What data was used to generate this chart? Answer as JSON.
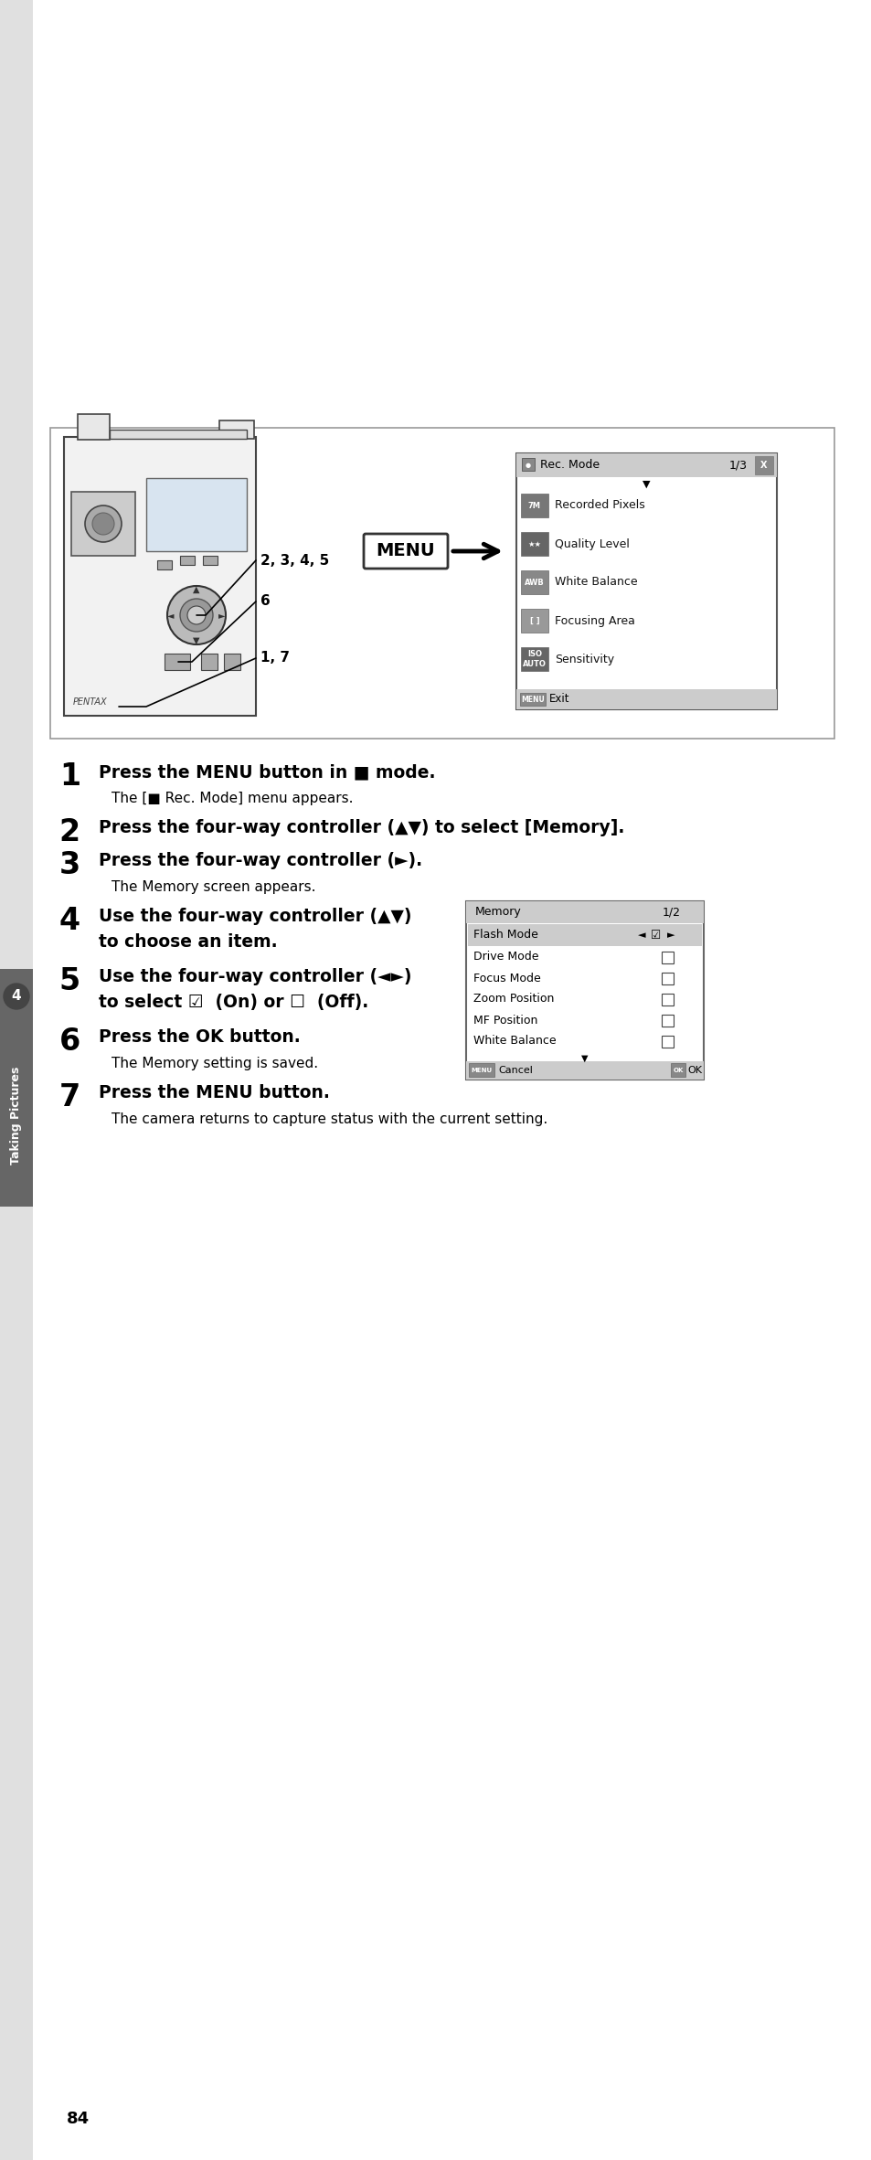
{
  "bg_color": "#ffffff",
  "sidebar_color": "#888888",
  "sidebar_text": "Taking Pictures",
  "sidebar_number": "4",
  "page_number": "84",
  "step1_bold": "Press the MENU button in ",
  "step1_icon": "■",
  "step1_bold2": " mode.",
  "step1_sub": "The [",
  "step1_sub_icon": "■",
  "step1_sub2": " Rec. Mode] menu appears.",
  "step2_bold": "Press the four-way controller (▲▼) to select [Memory].",
  "step3_bold": "Press the four-way controller (►).",
  "step3_sub": "The Memory screen appears.",
  "step4_bold": "Use the four-way controller (▲▼)",
  "step4_bold2": "to choose an item.",
  "step5_bold": "Use the four-way controller (◄►)",
  "step5_bold2": "to select ☑  (On) or ☐  (Off).",
  "step6_bold": "Press the OK button.",
  "step6_sub": "The Memory setting is saved.",
  "step7_bold": "Press the MENU button.",
  "step7_sub": "The camera returns to capture status with the current setting.",
  "label_2345": "2, 3, 4, 5",
  "label_6": "6",
  "label_17": "1, 7",
  "rec_title": "Rec. Mode",
  "rec_page": "1/3",
  "rec_items": [
    "Recorded Pixels",
    "Quality Level",
    "White Balance",
    "Focusing Area",
    "Sensitivity"
  ],
  "rec_icons": [
    "7M",
    "★★",
    "AWB",
    "[ ]",
    "ISO\nAUTO"
  ],
  "rec_icon_colors": [
    "#666666",
    "#666666",
    "#888888",
    "#aaaaaa",
    "#555555"
  ],
  "rec_footer": "MENU",
  "rec_footer_text": "Exit",
  "mem_title": "Memory",
  "mem_page": "1/2",
  "mem_items": [
    "Flash Mode",
    "Drive Mode",
    "Focus Mode",
    "Zoom Position",
    "MF Position",
    "White Balance"
  ],
  "mem_checked": [
    true,
    false,
    false,
    false,
    false,
    false
  ],
  "mem_footer_l": "MENU",
  "mem_footer_lt": "Cancel",
  "mem_footer_r": "OK",
  "mem_footer_rt": "OK"
}
